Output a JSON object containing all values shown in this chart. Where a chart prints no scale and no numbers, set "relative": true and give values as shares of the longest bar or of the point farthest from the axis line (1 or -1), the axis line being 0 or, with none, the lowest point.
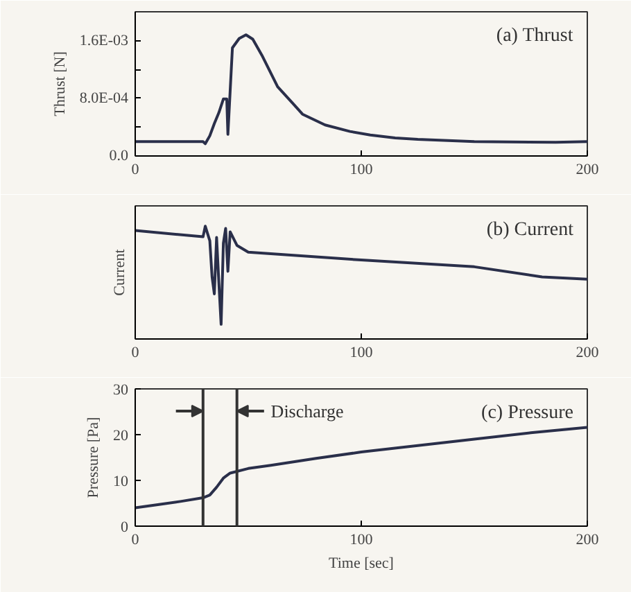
{
  "chart_data": [
    {
      "type": "line",
      "ylabel": "Thrust [N]",
      "annotations": [
        "(a) Thrust"
      ],
      "xlim": [
        0,
        200
      ],
      "xticks": [
        0,
        100,
        200
      ],
      "ylim": [
        0,
        0.002
      ],
      "yticks": [
        {
          "value": 0,
          "label": "0.0"
        },
        {
          "value": 0.0004,
          "label": null
        },
        {
          "value": 0.0008,
          "label": "8.0E-04"
        },
        {
          "value": 0.0012,
          "label": null
        },
        {
          "value": 0.0016,
          "label": "1.6E-03"
        }
      ],
      "series": [
        {
          "color": "#2a2f4a",
          "x": [
            0,
            30,
            31,
            33,
            35,
            37,
            39,
            40.5,
            41,
            42,
            43,
            46,
            49,
            52,
            56,
            63,
            70,
            74,
            84,
            95,
            104,
            115,
            125,
            150,
            186,
            200
          ],
          "values": [
            0.0002,
            0.0002,
            0.00017,
            0.00028,
            0.00045,
            0.0006,
            0.00079,
            0.00079,
            0.0003,
            0.0009,
            0.0015,
            0.00163,
            0.00168,
            0.00162,
            0.0014,
            0.00096,
            0.00072,
            0.00058,
            0.00043,
            0.00034,
            0.00029,
            0.00025,
            0.00023,
            0.0002,
            0.00019,
            0.0002
          ]
        }
      ]
    },
    {
      "type": "line",
      "relative": true,
      "ylabel": "Current",
      "annotations": [
        "(b) Current"
      ],
      "xlim": [
        0,
        200
      ],
      "xticks": [
        0,
        100,
        200
      ],
      "series": [
        {
          "color": "#2a2f4a",
          "x": [
            0,
            30,
            31,
            33,
            34,
            35,
            36,
            37,
            38,
            39,
            40,
            41,
            42,
            45,
            50,
            100,
            150,
            180,
            200
          ],
          "values": [
            0.962,
            0.906,
            1.0,
            0.87,
            0.55,
            0.4,
            0.9,
            0.5,
            0.13,
            0.85,
            0.98,
            0.6,
            0.95,
            0.83,
            0.77,
            0.7,
            0.64,
            0.55,
            0.53
          ]
        }
      ]
    },
    {
      "type": "line",
      "ylabel": "Pressure [Pa]",
      "xlabel": "Time [sec]",
      "xlim": [
        0,
        200
      ],
      "xticks": [
        0,
        100,
        200
      ],
      "ylim": [
        0,
        30
      ],
      "yticks": [
        0,
        10,
        20,
        30
      ],
      "annotations": [
        "(c) Pressure",
        "Discharge"
      ],
      "ref_lines": [
        {
          "axis": "x",
          "value": 30
        },
        {
          "axis": "x",
          "value": 45
        }
      ],
      "series": [
        {
          "color": "#2a2f4a",
          "x": [
            0,
            10,
            20,
            30,
            33,
            36,
            39,
            42,
            50,
            60,
            80,
            100,
            125,
            150,
            175,
            200
          ],
          "values": [
            4.0,
            4.7,
            5.4,
            6.2,
            6.8,
            8.5,
            10.5,
            11.6,
            12.6,
            13.3,
            14.8,
            16.2,
            17.6,
            19.0,
            20.4,
            21.6
          ]
        }
      ]
    }
  ]
}
